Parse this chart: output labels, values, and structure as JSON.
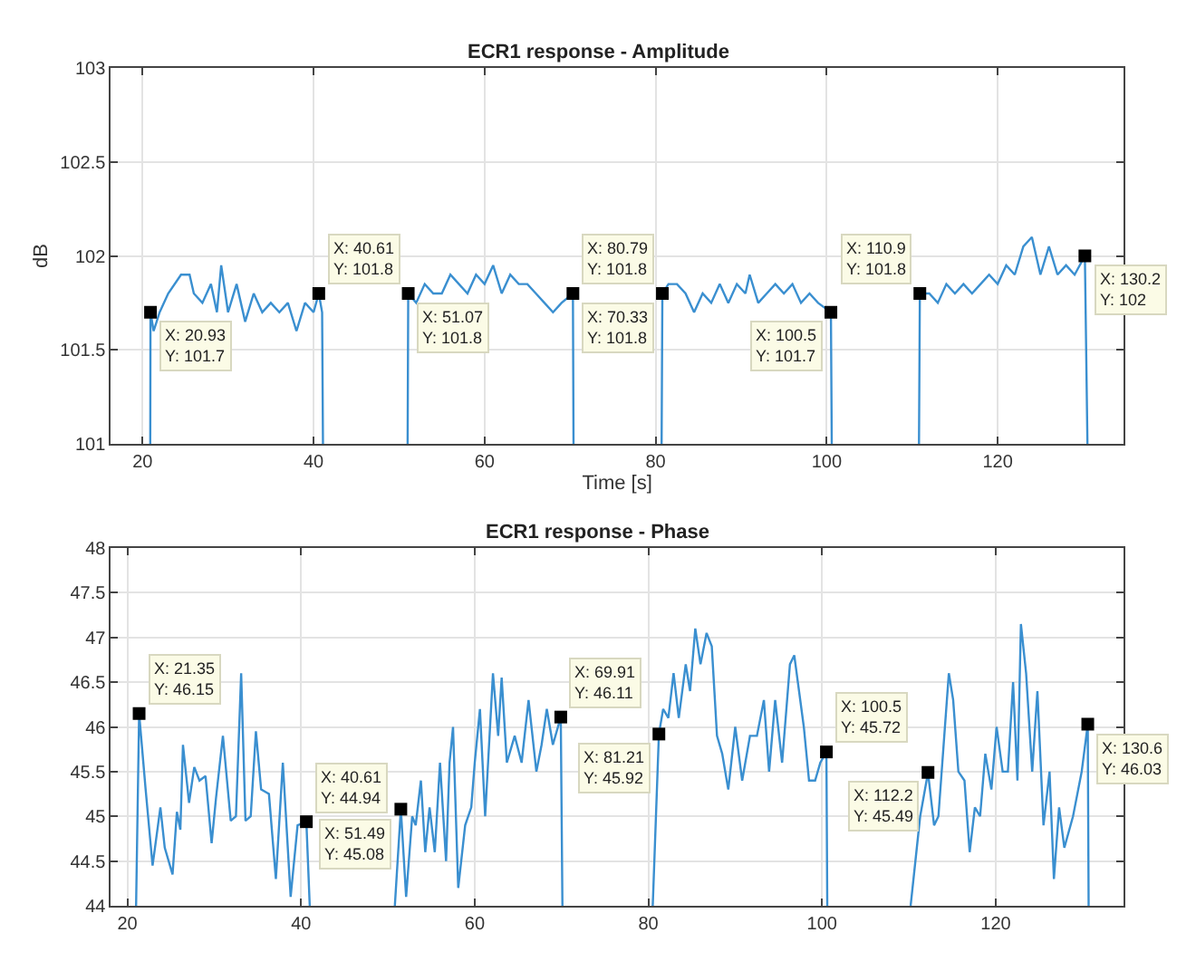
{
  "chart_data": [
    {
      "type": "line",
      "title": "ECR1 response - Amplitude",
      "xlabel": "Time [s]",
      "ylabel": "dB",
      "grid": true,
      "marker": "none",
      "xlim": [
        16.3,
        134.7
      ],
      "ylim": [
        101,
        103
      ],
      "xticks": [
        20,
        40,
        60,
        80,
        100,
        120
      ],
      "yticks": [
        101,
        101.5,
        102,
        102.5,
        103
      ],
      "x": [
        20.9,
        20.93,
        21.3,
        22,
        23,
        24.5,
        25.5,
        26,
        27,
        28,
        28.7,
        29.2,
        30,
        31,
        32,
        33,
        34,
        35,
        36,
        37,
        38,
        39,
        40,
        40.61,
        41,
        41.1,
        46,
        51.0,
        51.07,
        52,
        53,
        54,
        55,
        56,
        57,
        58,
        59,
        60,
        61,
        62,
        63,
        64,
        65,
        66,
        67,
        68,
        69,
        70.33,
        70.4,
        75,
        80.7,
        80.79,
        81.5,
        82.5,
        83.5,
        84.5,
        85.5,
        86.5,
        87.5,
        88.5,
        89.5,
        90.5,
        91,
        92,
        93,
        94,
        95,
        96,
        97,
        98,
        99,
        100.5,
        100.6,
        105,
        110.8,
        110.9,
        112,
        113,
        114,
        115,
        116,
        117,
        118,
        119,
        120,
        121,
        122,
        123,
        124,
        125,
        126,
        127,
        128,
        129,
        130.2,
        130.5
      ],
      "series": [
        {
          "color": "#3a8fd0",
          "values": [
            101,
            101.7,
            101.6,
            101.7,
            101.8,
            101.9,
            101.9,
            101.8,
            101.75,
            101.85,
            101.7,
            101.95,
            101.7,
            101.85,
            101.65,
            101.8,
            101.7,
            101.75,
            101.7,
            101.75,
            101.6,
            101.75,
            101.7,
            101.8,
            101.7,
            101,
            null,
            101,
            101.8,
            101.75,
            101.85,
            101.8,
            101.8,
            101.9,
            101.85,
            101.8,
            101.9,
            101.85,
            101.95,
            101.8,
            101.9,
            101.85,
            101.85,
            101.8,
            101.75,
            101.7,
            101.75,
            101.8,
            101,
            null,
            101,
            101.8,
            101.85,
            101.85,
            101.8,
            101.7,
            101.8,
            101.75,
            101.85,
            101.75,
            101.85,
            101.8,
            101.9,
            101.75,
            101.8,
            101.85,
            101.8,
            101.85,
            101.75,
            101.8,
            101.75,
            101.7,
            101,
            null,
            101,
            101.8,
            101.8,
            101.75,
            101.85,
            101.8,
            101.85,
            101.8,
            101.85,
            101.9,
            101.85,
            101.95,
            101.9,
            102.05,
            102.1,
            101.9,
            102.05,
            101.9,
            101.95,
            101.9,
            102,
            101
          ]
        }
      ],
      "annotations": [
        {
          "text": "X: 20.93\nY: 101.7",
          "x": 20.93,
          "y": 101.7
        },
        {
          "text": "X: 40.61\nY: 101.8",
          "x": 40.61,
          "y": 101.8
        },
        {
          "text": "X: 51.07\nY: 101.8",
          "x": 51.07,
          "y": 101.8
        },
        {
          "text": "X: 70.33\nY: 101.8",
          "x": 70.33,
          "y": 101.8
        },
        {
          "text": "X: 80.79\nY: 101.8",
          "x": 80.79,
          "y": 101.8
        },
        {
          "text": "X: 100.5\nY: 101.7",
          "x": 100.5,
          "y": 101.7
        },
        {
          "text": "X: 110.9\nY: 101.8",
          "x": 110.9,
          "y": 101.8
        },
        {
          "text": "X: 130.2\nY: 102",
          "x": 130.2,
          "y": 102
        }
      ]
    },
    {
      "type": "line",
      "title": "ECR1 response - Phase",
      "grid": true,
      "marker": "none",
      "xlim": [
        18.1,
        134.7
      ],
      "ylim": [
        44,
        48
      ],
      "xticks": [
        20,
        40,
        60,
        80,
        100,
        120
      ],
      "yticks": [
        44,
        44.5,
        45,
        45.5,
        46,
        46.5,
        47,
        47.5,
        48
      ],
      "x": [
        21.0,
        21.35,
        22.1,
        22.9,
        23.8,
        24.3,
        25.2,
        25.7,
        26.1,
        26.4,
        27.1,
        27.7,
        28.3,
        29,
        29.7,
        30.2,
        31,
        31.9,
        32.5,
        33.1,
        33.6,
        34.2,
        34.8,
        35.4,
        36.3,
        37.1,
        37.9,
        38.8,
        39.6,
        40.61,
        41,
        46,
        50.8,
        51.49,
        52.1,
        52.8,
        53.2,
        53.8,
        54.3,
        54.8,
        55.4,
        56,
        56.7,
        57.1,
        57.5,
        58.1,
        58.9,
        59.6,
        60,
        60.6,
        61.2,
        62.1,
        62.7,
        63.1,
        63.7,
        64.6,
        65.4,
        66.2,
        67.1,
        67.7,
        68.3,
        69,
        69.91,
        70.1,
        75,
        80.5,
        81.21,
        81.7,
        82.3,
        82.9,
        83.5,
        84.3,
        84.8,
        85.4,
        86,
        86.7,
        87.3,
        87.9,
        88.5,
        89.2,
        90,
        90.8,
        91.7,
        92.5,
        93.3,
        93.9,
        94.6,
        95.4,
        96.3,
        96.8,
        97.9,
        98.5,
        99.2,
        99.8,
        100.5,
        100.6,
        105,
        110.2,
        111.3,
        112.2,
        112.9,
        113.4,
        114,
        114.6,
        115.1,
        115.7,
        116.4,
        117,
        117.6,
        118.2,
        118.8,
        119.5,
        120.1,
        120.8,
        121.4,
        122,
        122.5,
        122.9,
        123.5,
        124.2,
        124.8,
        125.5,
        126.2,
        126.7,
        127.3,
        127.9,
        128.9,
        129.9,
        130.6,
        130.7
      ],
      "series": [
        {
          "color": "#3a8fd0",
          "values": [
            44,
            46.15,
            45.3,
            44.45,
            45.1,
            44.65,
            44.35,
            45.05,
            44.85,
            45.8,
            45.15,
            45.55,
            45.4,
            45.45,
            44.7,
            45.2,
            45.9,
            44.95,
            45.0,
            46.6,
            44.95,
            45.0,
            45.95,
            45.3,
            45.25,
            44.3,
            45.6,
            44.1,
            44.9,
            44.94,
            44,
            null,
            44,
            45.08,
            44.1,
            45.0,
            44.9,
            45.4,
            44.6,
            45.1,
            44.6,
            45.6,
            44.5,
            45.6,
            46.0,
            44.2,
            44.9,
            45.1,
            45.6,
            46.2,
            45.0,
            46.6,
            45.9,
            46.55,
            45.6,
            45.9,
            45.6,
            46.3,
            45.5,
            45.8,
            46.2,
            45.8,
            46.11,
            44,
            null,
            44,
            45.92,
            46.2,
            46.1,
            46.6,
            46.1,
            46.7,
            46.4,
            47.1,
            46.7,
            47.05,
            46.9,
            45.9,
            45.7,
            45.3,
            46.0,
            45.4,
            45.9,
            45.9,
            46.3,
            45.5,
            46.3,
            45.6,
            46.7,
            46.8,
            46.0,
            45.4,
            45.4,
            45.6,
            45.72,
            44,
            null,
            44,
            45.0,
            45.49,
            44.9,
            45.0,
            45.8,
            46.6,
            46.3,
            45.5,
            45.4,
            44.6,
            45.1,
            45.0,
            45.7,
            45.3,
            46.0,
            45.5,
            45.5,
            46.5,
            45.4,
            47.15,
            46.6,
            45.5,
            46.4,
            44.9,
            45.5,
            44.3,
            45.1,
            44.65,
            45.0,
            45.5,
            46.03,
            44
          ]
        }
      ],
      "annotations": [
        {
          "text": "X: 21.35\nY: 46.15",
          "x": 21.35,
          "y": 46.15
        },
        {
          "text": "X: 40.61\nY: 44.94",
          "x": 40.61,
          "y": 44.94
        },
        {
          "text": "X: 51.49\nY: 45.08",
          "x": 51.49,
          "y": 45.08
        },
        {
          "text": "X: 69.91\nY: 46.11",
          "x": 69.91,
          "y": 46.11
        },
        {
          "text": "X: 81.21\nY: 45.92",
          "x": 81.21,
          "y": 45.92
        },
        {
          "text": "X: 100.5\nY: 45.72",
          "x": 100.5,
          "y": 45.72
        },
        {
          "text": "X: 112.2\nY: 45.49",
          "x": 112.2,
          "y": 45.49
        },
        {
          "text": "X: 130.6\nY: 46.03",
          "x": 130.6,
          "y": 46.03
        }
      ]
    }
  ]
}
